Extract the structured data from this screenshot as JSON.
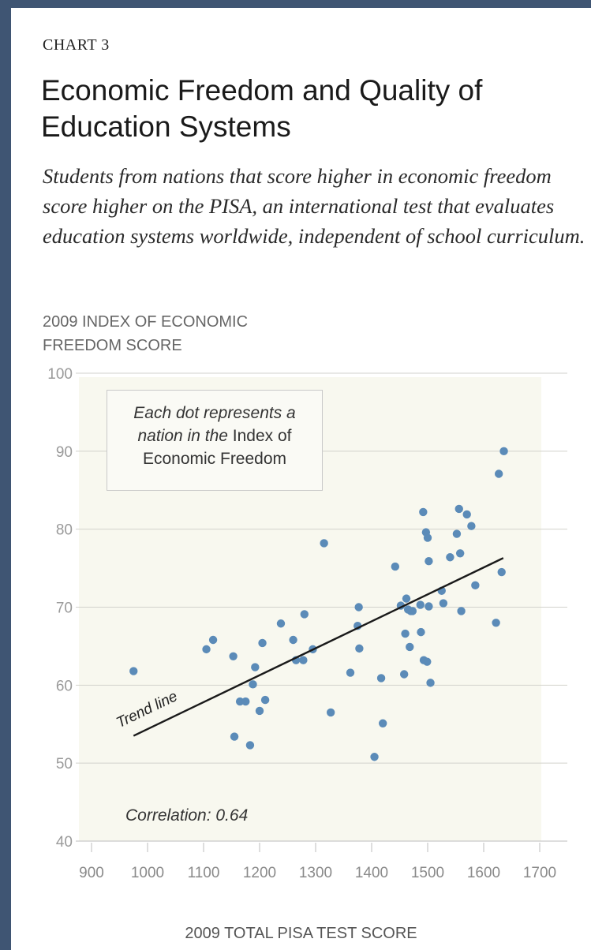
{
  "header": {
    "kicker": "CHART 3",
    "title": "Economic Freedom and Quality of Education Systems",
    "subtitle": "Students from nations that score higher in economic freedom score higher on the PISA, an international test that evaluates education systems worldwide, independent of school curriculum."
  },
  "note": {
    "line1": "Each dot represents a",
    "line2_a": "nation in the ",
    "line2_b": "Index of",
    "line3": "Economic Freedom"
  },
  "correlation_label": "Correlation: 0.64",
  "colors": {
    "dot": "#5b8bb8",
    "plot_bg": "#f8f8ef",
    "trend": "#1a1a1a",
    "frame": "#3f5573"
  },
  "chart_data": {
    "type": "scatter",
    "ylabel": "2009 INDEX OF ECONOMIC FREEDOM SCORE",
    "xlabel": "2009 TOTAL PISA TEST SCORE",
    "xlim": [
      900,
      1700
    ],
    "ylim": [
      40,
      100
    ],
    "xticks": [
      900,
      1000,
      1100,
      1200,
      1300,
      1400,
      1500,
      1600,
      1700
    ],
    "yticks": [
      40,
      50,
      60,
      70,
      80,
      90,
      100
    ],
    "grid": "horizontal",
    "trend_line": {
      "label": "Trend line",
      "x": [
        975,
        1635
      ],
      "y": [
        53.5,
        76.3
      ]
    },
    "points": [
      [
        975,
        61.8
      ],
      [
        1105,
        64.6
      ],
      [
        1117,
        65.8
      ],
      [
        1153,
        63.7
      ],
      [
        1155,
        53.4
      ],
      [
        1165,
        57.9
      ],
      [
        1175,
        57.9
      ],
      [
        1183,
        52.3
      ],
      [
        1188,
        60.1
      ],
      [
        1192,
        62.3
      ],
      [
        1200,
        56.7
      ],
      [
        1205,
        65.4
      ],
      [
        1210,
        58.1
      ],
      [
        1238,
        67.9
      ],
      [
        1260,
        65.8
      ],
      [
        1265,
        63.2
      ],
      [
        1278,
        63.2
      ],
      [
        1280,
        69.1
      ],
      [
        1295,
        64.6
      ],
      [
        1315,
        78.2
      ],
      [
        1327,
        56.5
      ],
      [
        1362,
        61.6
      ],
      [
        1377,
        70.0
      ],
      [
        1375,
        67.6
      ],
      [
        1378,
        64.7
      ],
      [
        1405,
        50.8
      ],
      [
        1417,
        60.9
      ],
      [
        1420,
        55.1
      ],
      [
        1442,
        75.2
      ],
      [
        1452,
        70.2
      ],
      [
        1458,
        61.4
      ],
      [
        1460,
        66.6
      ],
      [
        1462,
        71.1
      ],
      [
        1465,
        69.7
      ],
      [
        1468,
        64.9
      ],
      [
        1470,
        69.5
      ],
      [
        1473,
        69.5
      ],
      [
        1487,
        70.3
      ],
      [
        1488,
        66.8
      ],
      [
        1492,
        82.2
      ],
      [
        1493,
        63.2
      ],
      [
        1497,
        79.6
      ],
      [
        1500,
        78.9
      ],
      [
        1499,
        63.0
      ],
      [
        1502,
        75.9
      ],
      [
        1502,
        70.1
      ],
      [
        1505,
        60.3
      ],
      [
        1525,
        72.1
      ],
      [
        1528,
        70.5
      ],
      [
        1540,
        76.4
      ],
      [
        1552,
        79.4
      ],
      [
        1556,
        82.6
      ],
      [
        1558,
        76.9
      ],
      [
        1560,
        69.5
      ],
      [
        1570,
        81.9
      ],
      [
        1578,
        80.4
      ],
      [
        1585,
        72.8
      ],
      [
        1622,
        68.0
      ],
      [
        1627,
        87.1
      ],
      [
        1632,
        74.5
      ],
      [
        1636,
        90.0
      ]
    ]
  }
}
